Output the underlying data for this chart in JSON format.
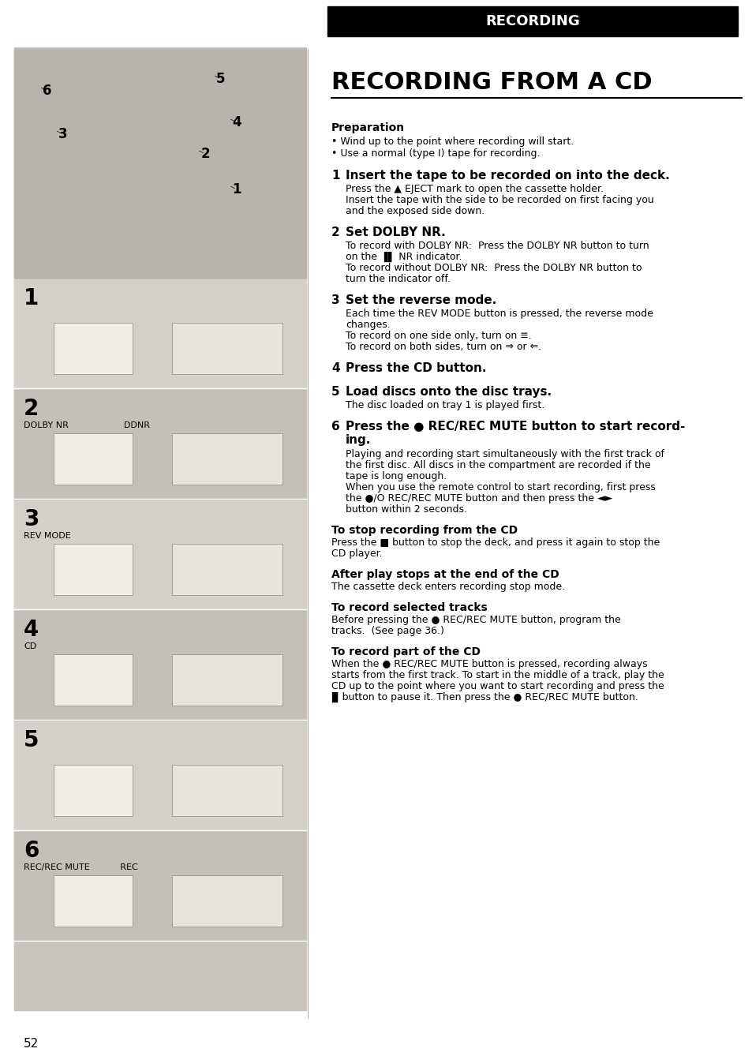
{
  "bg_color": "#ffffff",
  "page_bg": "#f0ede8",
  "header_bg": "#000000",
  "header_text": "RECORDING",
  "header_text_color": "#ffffff",
  "title": "RECORDING FROM A CD",
  "page_number": "52",
  "left_panel_bg": "#d4cfc8",
  "content": {
    "preparation_bold": "Preparation",
    "prep_bullets": [
      "Wind up to the point where recording will start.",
      "Use a normal (type I) tape for recording."
    ],
    "steps": [
      {
        "num": "1",
        "heading": "Insert the tape to be recorded on into the deck.",
        "body": "Press the ▲ EJECT mark to open the cassette holder.\nInsert the tape with the side to be recorded on first facing you\nand the exposed side down."
      },
      {
        "num": "2",
        "heading": "Set DOLBY NR.",
        "body": "To record with DOLBY NR:  Press the DOLBY NR button to turn\non the ▐▌ NR indicator.\nTo record without DOLBY NR:  Press the DOLBY NR button to\nturn the indicator off."
      },
      {
        "num": "3",
        "heading": "Set the reverse mode.",
        "body": "Each time the REV MODE button is pressed, the reverse mode\nchanges.\nTo record on one side only, turn on ≡.\nTo record on both sides, turn on ⇒ or ⇐."
      },
      {
        "num": "4",
        "heading": "Press the CD button.",
        "body": ""
      },
      {
        "num": "5",
        "heading": "Load discs onto the disc trays.",
        "body": "The disc loaded on tray 1 is played first."
      },
      {
        "num": "6",
        "heading": "Press the ● REC/REC MUTE button to start record-\ning.",
        "body": "Playing and recording start simultaneously with the first track of\nthe first disc. All discs in the compartment are recorded if the\ntape is long enough.\nWhen you use the remote control to start recording, first press\nthe ●/O REC/REC MUTE button and then press the ◄►\nbutton within 2 seconds."
      }
    ],
    "sections": [
      {
        "heading_bold": "To stop recording from the CD",
        "body": "Press the ■ button to stop the deck, and press it again to stop the\nCD player."
      },
      {
        "heading_bold": "After play stops at the end of the CD",
        "body": "The cassette deck enters recording stop mode."
      },
      {
        "heading_bold": "To record selected tracks",
        "body": "Before pressing the ● REC/REC MUTE button, program the\ntracks.  (See page 36.)"
      },
      {
        "heading_bold": "To record part of the CD",
        "body": "When the ● REC/REC MUTE button is pressed, recording always\nstarts from the first track. To start in the middle of a track, play the\nCD up to the point where you want to start recording and press the\n▊ button to pause it. Then press the ● REC/REC MUTE button."
      }
    ],
    "left_steps": [
      {
        "num": "1",
        "label": ""
      },
      {
        "num": "2",
        "label": "DOLBY NR\n\n\n\nDDNR"
      },
      {
        "num": "3",
        "label": "REV MODE"
      },
      {
        "num": "4",
        "label": "CD"
      },
      {
        "num": "5",
        "label": ""
      },
      {
        "num": "6",
        "label": "REC/REC MUTE\n\n\n\nREC"
      }
    ]
  }
}
